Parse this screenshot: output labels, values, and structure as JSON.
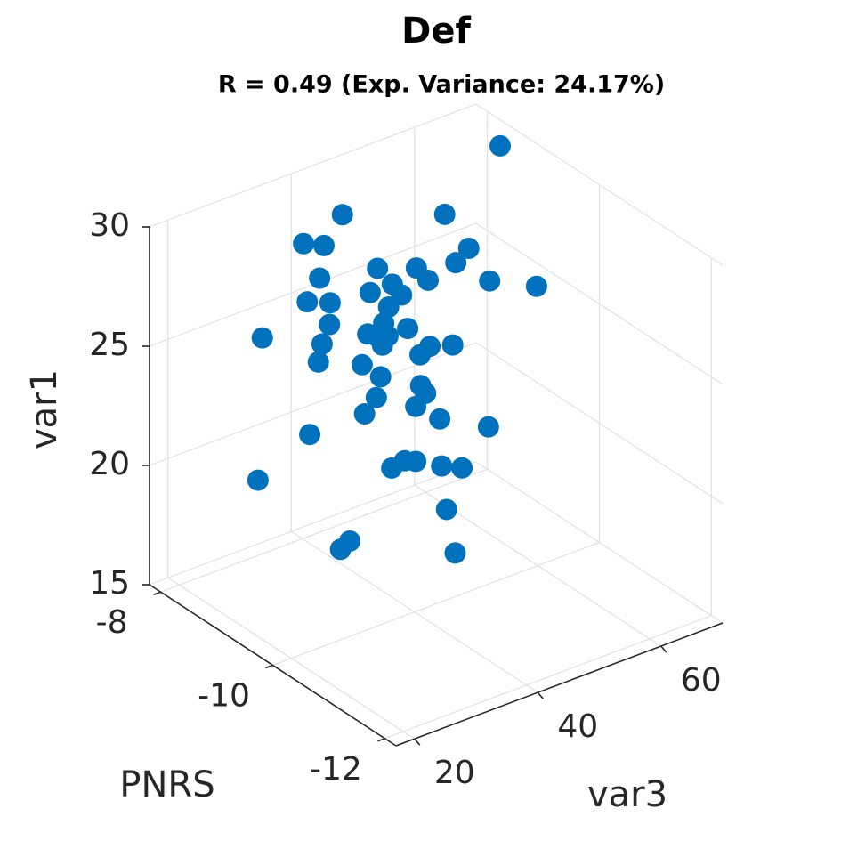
{
  "chart_data": {
    "type": "scatter3d",
    "title": "Def",
    "subtitle": "R = 0.49 (Exp. Variance: 24.17%)",
    "xlabel": "PNRS",
    "ylabel": "var3",
    "zlabel": "var1",
    "color": "#0072bd",
    "grid": true,
    "xlim": [
      -12.2,
      -7.8
    ],
    "ylim": [
      17,
      70
    ],
    "zlim": [
      15,
      30
    ],
    "xticks": [
      -12,
      -10,
      -8
    ],
    "yticks": [
      20,
      40,
      60
    ],
    "zticks": [
      15,
      20,
      25,
      30
    ],
    "x": [
      -8.68,
      -8.68,
      -8.68,
      -8.68,
      -8.68,
      -8.68,
      -8.68,
      -8.68,
      -8.68,
      -8.68,
      -9.12,
      -8.68,
      -8.68,
      -8.68,
      -8.68,
      -8.68,
      -8.68,
      -8.68,
      -8.68,
      -8.68,
      -8.68,
      -8.68,
      -8.68,
      -8.68,
      -8.68,
      -8.68,
      -8.68,
      -8.68,
      -8.68,
      -8.68,
      -8.68,
      -8.68,
      -8.68,
      -8.68,
      -8.68,
      -8.68,
      -8.68,
      -8.68,
      -8.68,
      -8.68,
      -8.68,
      -8.68,
      -8.68,
      -8.68,
      -8.68,
      -8.68,
      -8.68,
      -8.68,
      -8.68,
      -8.68,
      -8.68,
      -9.78
    ],
    "y": [
      65.9,
      40.3,
      56.9,
      34.0,
      37.3,
      60.8,
      58.7,
      46.0,
      52.3,
      64.2,
      67.8,
      36.6,
      48.4,
      54.2,
      44.8,
      49.9,
      34.6,
      38.3,
      47.8,
      38.2,
      47.0,
      50.9,
      27.3,
      44.4,
      46.1,
      47.7,
      37.0,
      46.8,
      54.5,
      58.2,
      52.9,
      36.4,
      43.5,
      46.5,
      53.0,
      45.8,
      53.8,
      52.2,
      43.9,
      56.1,
      64.0,
      35.0,
      48.3,
      50.4,
      52.2,
      56.4,
      59.7,
      26.6,
      57.2,
      41.5,
      40.0,
      48.6
    ],
    "z": [
      30.0,
      29.6,
      28.0,
      29.0,
      28.6,
      26.2,
      25.8,
      26.8,
      26.2,
      24.5,
      24.6,
      27.3,
      25.9,
      25.5,
      25.9,
      25.3,
      26.5,
      26.1,
      25.0,
      25.2,
      24.4,
      23.8,
      25.7,
      24.2,
      23.9,
      23.8,
      24.5,
      23.5,
      22.7,
      22.4,
      22.5,
      23.8,
      23.0,
      22.2,
      21.2,
      21.4,
      20.8,
      20.4,
      20.9,
      19.5,
      18.4,
      20.9,
      18.2,
      18.3,
      18.1,
      17.5,
      17.1,
      19.8,
      15.6,
      15.8,
      15.6,
      16.3
    ]
  }
}
